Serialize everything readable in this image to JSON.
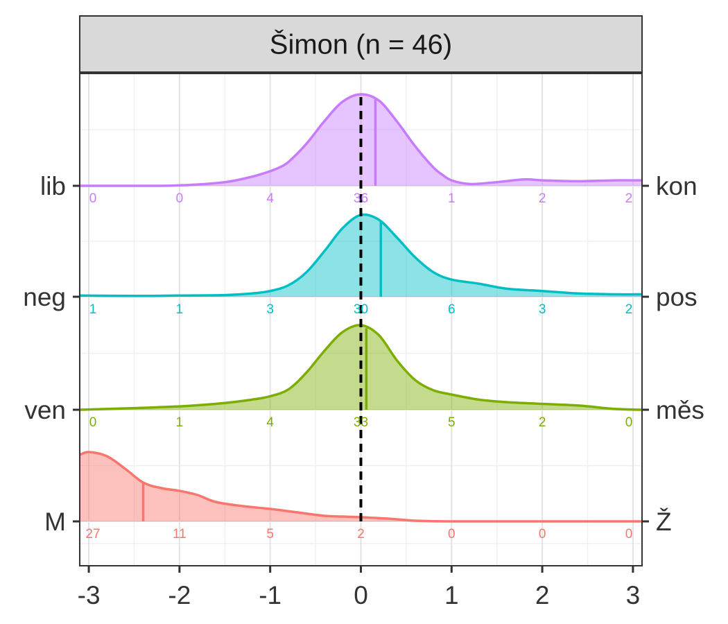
{
  "chart_data": {
    "type": "ridgeline",
    "title": "Šimon (n = 46)",
    "xlim": [
      -3.1,
      3.1
    ],
    "x_ticks": [
      -3,
      -2,
      -1,
      0,
      1,
      2,
      3
    ],
    "x_tick_labels": [
      "-3",
      "-2",
      "-1",
      "0",
      "1",
      "2",
      "3"
    ],
    "reference_line_x": 0,
    "grid": true,
    "series": [
      {
        "left_label": "lib",
        "right_label": "kon",
        "color": "#C77CFF",
        "mean": 0.16,
        "counts": [
          "0",
          "0",
          "4",
          "36",
          "1",
          "2",
          "2"
        ],
        "density": [
          [
            -3.1,
            0.0
          ],
          [
            -2.5,
            0.0
          ],
          [
            -2.0,
            0.005
          ],
          [
            -1.5,
            0.04
          ],
          [
            -1.2,
            0.1
          ],
          [
            -1.0,
            0.16
          ],
          [
            -0.9,
            0.2
          ],
          [
            -0.8,
            0.26
          ],
          [
            -0.6,
            0.46
          ],
          [
            -0.4,
            0.71
          ],
          [
            -0.2,
            0.92
          ],
          [
            0.0,
            1.0
          ],
          [
            0.2,
            0.93
          ],
          [
            0.4,
            0.7
          ],
          [
            0.6,
            0.43
          ],
          [
            0.8,
            0.2
          ],
          [
            0.9,
            0.12
          ],
          [
            1.0,
            0.06
          ],
          [
            1.2,
            0.02
          ],
          [
            1.5,
            0.04
          ],
          [
            1.8,
            0.07
          ],
          [
            2.0,
            0.06
          ],
          [
            2.4,
            0.05
          ],
          [
            2.8,
            0.06
          ],
          [
            3.1,
            0.06
          ]
        ]
      },
      {
        "left_label": "neg",
        "right_label": "pos",
        "color": "#00BFC4",
        "mean": 0.22,
        "counts": [
          "1",
          "1",
          "3",
          "30",
          "6",
          "3",
          "2"
        ],
        "density": [
          [
            -3.1,
            0.015
          ],
          [
            -2.5,
            0.01
          ],
          [
            -2.0,
            0.015
          ],
          [
            -1.5,
            0.02
          ],
          [
            -1.2,
            0.04
          ],
          [
            -1.0,
            0.07
          ],
          [
            -0.8,
            0.14
          ],
          [
            -0.6,
            0.3
          ],
          [
            -0.4,
            0.56
          ],
          [
            -0.2,
            0.84
          ],
          [
            0.0,
            1.0
          ],
          [
            0.2,
            0.94
          ],
          [
            0.4,
            0.72
          ],
          [
            0.6,
            0.48
          ],
          [
            0.8,
            0.3
          ],
          [
            1.0,
            0.21
          ],
          [
            1.3,
            0.16
          ],
          [
            1.6,
            0.1
          ],
          [
            2.0,
            0.07
          ],
          [
            2.4,
            0.04
          ],
          [
            2.8,
            0.03
          ],
          [
            3.1,
            0.03
          ]
        ]
      },
      {
        "left_label": "ven",
        "right_label": "měs",
        "color": "#7CAE00",
        "mean": 0.06,
        "counts": [
          "0",
          "1",
          "4",
          "33",
          "5",
          "2",
          "0"
        ],
        "density": [
          [
            -3.1,
            0.0
          ],
          [
            -2.5,
            0.02
          ],
          [
            -2.0,
            0.04
          ],
          [
            -1.5,
            0.08
          ],
          [
            -1.2,
            0.12
          ],
          [
            -1.0,
            0.16
          ],
          [
            -0.8,
            0.24
          ],
          [
            -0.6,
            0.44
          ],
          [
            -0.4,
            0.7
          ],
          [
            -0.2,
            0.92
          ],
          [
            0.0,
            1.0
          ],
          [
            0.2,
            0.88
          ],
          [
            0.4,
            0.58
          ],
          [
            0.6,
            0.35
          ],
          [
            0.8,
            0.23
          ],
          [
            1.0,
            0.18
          ],
          [
            1.3,
            0.12
          ],
          [
            1.6,
            0.09
          ],
          [
            2.0,
            0.07
          ],
          [
            2.4,
            0.05
          ],
          [
            2.8,
            0.01
          ],
          [
            3.1,
            0.0
          ]
        ]
      },
      {
        "left_label": "M",
        "right_label": "Ž",
        "color": "#F8766D",
        "mean": -2.4,
        "counts": [
          "27",
          "11",
          "5",
          "2",
          "0",
          "0",
          "0"
        ],
        "density": [
          [
            -3.1,
            0.96
          ],
          [
            -3.0,
            1.0
          ],
          [
            -2.8,
            0.94
          ],
          [
            -2.6,
            0.76
          ],
          [
            -2.4,
            0.56
          ],
          [
            -2.2,
            0.48
          ],
          [
            -2.0,
            0.44
          ],
          [
            -1.8,
            0.38
          ],
          [
            -1.6,
            0.28
          ],
          [
            -1.3,
            0.22
          ],
          [
            -1.0,
            0.18
          ],
          [
            -0.7,
            0.13
          ],
          [
            -0.4,
            0.08
          ],
          [
            -0.2,
            0.07
          ],
          [
            0.0,
            0.06
          ],
          [
            0.3,
            0.04
          ],
          [
            0.6,
            0.01
          ],
          [
            1.0,
            0.0
          ],
          [
            2.0,
            0.0
          ],
          [
            3.1,
            0.0
          ]
        ]
      }
    ]
  }
}
